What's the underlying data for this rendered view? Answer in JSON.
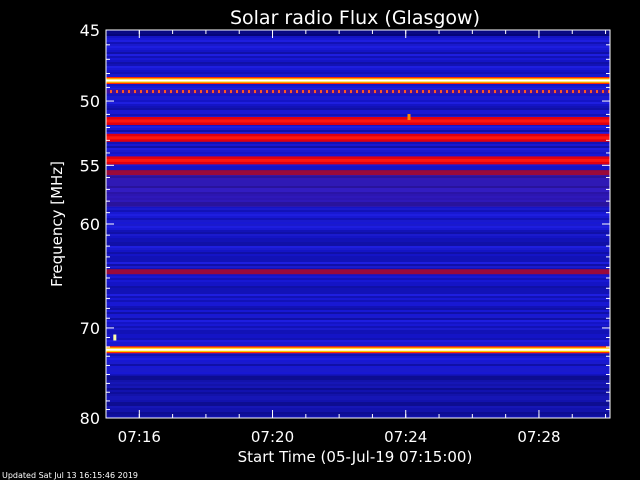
{
  "chart_data": {
    "type": "heatmap",
    "title": "Solar radio Flux (Glasgow)",
    "xlabel": "Start Time (05-Jul-19 07:15:00)",
    "ylabel": "Frequency [MHz]",
    "y_scale": "log",
    "ylim": [
      45,
      80
    ],
    "xlim": [
      "07:15:00",
      "07:30:08"
    ],
    "y_ticks": [
      45,
      50,
      55,
      60,
      70,
      80
    ],
    "x_ticks": [
      "07:16",
      "07:20",
      "07:24",
      "07:28"
    ],
    "colormap": "blue-red-yellow-white",
    "bands": [
      {
        "freq_mhz": 48.5,
        "intensity": "white"
      },
      {
        "freq_mhz": 49.3,
        "intensity": "red-dashed"
      },
      {
        "freq_mhz": 51.5,
        "intensity": "red"
      },
      {
        "freq_mhz": 52.8,
        "intensity": "red"
      },
      {
        "freq_mhz": 54.6,
        "intensity": "red"
      },
      {
        "freq_mhz": 55.6,
        "intensity": "dark-red"
      },
      {
        "freq_mhz": 64.4,
        "intensity": "dark-red"
      },
      {
        "freq_mhz": 72.3,
        "intensity": "white"
      }
    ],
    "annotations": [
      {
        "time": "07:24:05",
        "freq_mhz": 51.2,
        "color": "orange"
      },
      {
        "time": "07:15:15",
        "freq_mhz": 71.0,
        "color": "white"
      }
    ]
  },
  "footer": {
    "updated": "Updated Sat Jul 13 16:15:46 2019"
  },
  "colors": {
    "background": "#000000",
    "plot_base": "#1a1ad8",
    "axis": "#ffffff"
  }
}
